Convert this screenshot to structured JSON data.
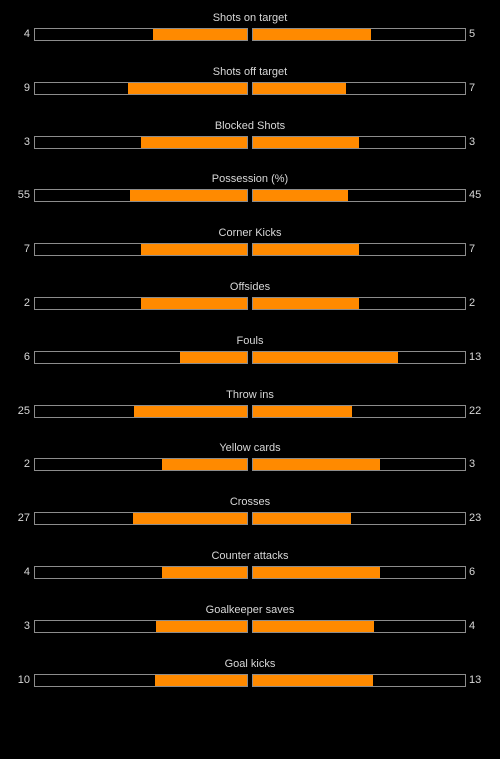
{
  "colors": {
    "background": "#000000",
    "fill": "#ff8a00",
    "bar_border": "#8c8c8c",
    "text": "#d8d8d8"
  },
  "stats": [
    {
      "label": "Shots on target",
      "home": "4",
      "away": "5",
      "home_fill": 0.444,
      "away_fill": 0.556
    },
    {
      "label": "Shots off target",
      "home": "9",
      "away": "7",
      "home_fill": 0.5625,
      "away_fill": 0.4375
    },
    {
      "label": "Blocked Shots",
      "home": "3",
      "away": "3",
      "home_fill": 0.5,
      "away_fill": 0.5
    },
    {
      "label": "Possession (%)",
      "home": "55",
      "away": "45",
      "home_fill": 0.55,
      "away_fill": 0.45
    },
    {
      "label": "Corner Kicks",
      "home": "7",
      "away": "7",
      "home_fill": 0.5,
      "away_fill": 0.5
    },
    {
      "label": "Offsides",
      "home": "2",
      "away": "2",
      "home_fill": 0.5,
      "away_fill": 0.5
    },
    {
      "label": "Fouls",
      "home": "6",
      "away": "13",
      "home_fill": 0.316,
      "away_fill": 0.684
    },
    {
      "label": "Throw ins",
      "home": "25",
      "away": "22",
      "home_fill": 0.532,
      "away_fill": 0.468
    },
    {
      "label": "Yellow cards",
      "home": "2",
      "away": "3",
      "home_fill": 0.4,
      "away_fill": 0.6
    },
    {
      "label": "Crosses",
      "home": "27",
      "away": "23",
      "home_fill": 0.54,
      "away_fill": 0.46
    },
    {
      "label": "Counter attacks",
      "home": "4",
      "away": "6",
      "home_fill": 0.4,
      "away_fill": 0.6
    },
    {
      "label": "Goalkeeper saves",
      "home": "3",
      "away": "4",
      "home_fill": 0.429,
      "away_fill": 0.571
    },
    {
      "label": "Goal kicks",
      "home": "10",
      "away": "13",
      "home_fill": 0.435,
      "away_fill": 0.565
    }
  ]
}
